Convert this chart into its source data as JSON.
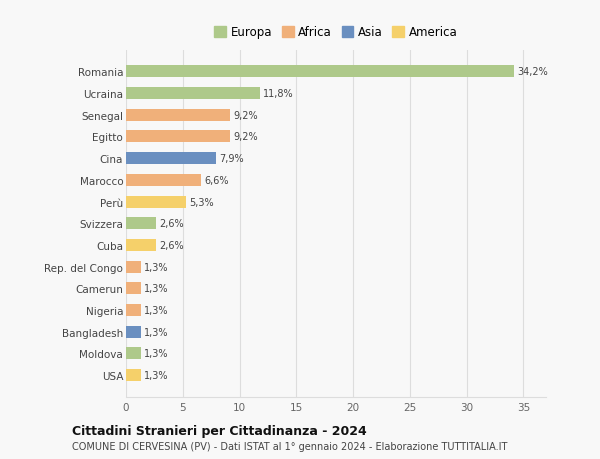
{
  "countries": [
    "Romania",
    "Ucraina",
    "Senegal",
    "Egitto",
    "Cina",
    "Marocco",
    "Perù",
    "Svizzera",
    "Cuba",
    "Rep. del Congo",
    "Camerun",
    "Nigeria",
    "Bangladesh",
    "Moldova",
    "USA"
  ],
  "values": [
    34.2,
    11.8,
    9.2,
    9.2,
    7.9,
    6.6,
    5.3,
    2.6,
    2.6,
    1.3,
    1.3,
    1.3,
    1.3,
    1.3,
    1.3
  ],
  "labels": [
    "34,2%",
    "11,8%",
    "9,2%",
    "9,2%",
    "7,9%",
    "6,6%",
    "5,3%",
    "2,6%",
    "2,6%",
    "1,3%",
    "1,3%",
    "1,3%",
    "1,3%",
    "1,3%",
    "1,3%"
  ],
  "continents": [
    "Europa",
    "Europa",
    "Africa",
    "Africa",
    "Asia",
    "Africa",
    "America",
    "Europa",
    "America",
    "Africa",
    "Africa",
    "Africa",
    "Asia",
    "Europa",
    "America"
  ],
  "continent_colors": {
    "Europa": "#aec98a",
    "Africa": "#f0b07a",
    "Asia": "#6a8fc0",
    "America": "#f5d06a"
  },
  "legend_order": [
    "Europa",
    "Africa",
    "Asia",
    "America"
  ],
  "xlim": [
    0,
    37
  ],
  "xticks": [
    0,
    5,
    10,
    15,
    20,
    25,
    30,
    35
  ],
  "title": "Cittadini Stranieri per Cittadinanza - 2024",
  "subtitle": "COMUNE DI CERVESINA (PV) - Dati ISTAT al 1° gennaio 2024 - Elaborazione TUTTITALIA.IT",
  "bg_color": "#f8f8f8",
  "grid_color": "#dddddd",
  "bar_height": 0.55
}
